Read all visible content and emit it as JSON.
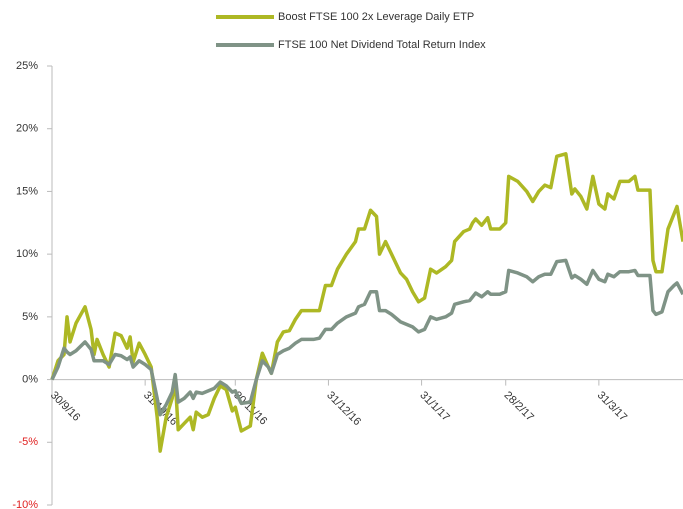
{
  "chart_data": {
    "type": "line",
    "x": [
      0,
      2,
      4,
      5,
      6,
      8,
      11,
      13,
      14,
      15,
      17,
      19,
      21,
      23,
      25,
      26,
      27,
      29,
      31,
      33,
      35,
      36,
      38,
      40,
      41,
      42,
      44,
      46,
      47,
      48,
      50,
      52,
      54,
      56,
      58,
      60,
      61,
      63,
      66,
      68,
      70,
      72,
      73,
      75,
      77,
      79,
      81,
      83,
      87,
      89,
      91,
      93,
      95,
      98,
      101,
      102,
      104,
      106,
      108,
      109,
      111,
      113,
      116,
      118,
      120,
      122,
      124,
      126,
      128,
      131,
      133,
      134,
      137,
      139,
      140,
      141,
      143,
      145,
      146,
      149,
      151,
      152,
      155,
      158,
      160,
      162,
      164,
      166,
      168,
      171,
      173,
      174,
      176,
      178,
      180,
      182,
      184,
      185,
      187,
      189,
      192,
      194,
      195,
      199,
      200,
      201,
      203,
      205,
      207,
      208,
      210
    ],
    "series": [
      {
        "name": "Boost FTSE 100 2x Leverage Daily ETP",
        "color": "#adb824",
        "values": [
          0,
          1.5,
          2,
          5,
          3,
          4.5,
          5.8,
          4,
          2,
          3.2,
          2,
          1,
          3.7,
          3.5,
          2.5,
          3.4,
          1.4,
          2.9,
          2,
          1,
          -3,
          -5.7,
          -3,
          -1.5,
          0,
          -4,
          -3.5,
          -3,
          -4,
          -2.6,
          -3,
          -2.8,
          -1.5,
          -0.5,
          -0.8,
          -2.5,
          -2.2,
          -4.1,
          -3.7,
          0,
          2.1,
          1,
          0.5,
          3,
          3.8,
          3.9,
          4.8,
          5.5,
          5.5,
          5.5,
          7.5,
          7.5,
          8.8,
          10,
          11,
          12,
          12,
          13.5,
          13,
          10,
          11,
          10,
          8.5,
          8,
          7,
          6.2,
          6.5,
          8.8,
          8.5,
          9,
          9.5,
          11,
          11.8,
          12,
          12.5,
          12.8,
          12.3,
          12.9,
          12,
          12,
          12.5,
          16.2,
          15.8,
          15,
          14.2,
          15,
          15.5,
          15.3,
          17.8,
          18,
          14.8,
          15.2,
          14.6,
          13.6,
          16.2,
          14,
          13.6,
          14.8,
          14.4,
          15.8,
          15.8,
          16.2,
          15.1,
          15.1,
          9.5,
          8.6,
          8.6,
          12,
          13.2,
          13.8,
          11
        ]
      },
      {
        "name": "FTSE 100 Net Dividend Total Return Index",
        "color": "#7f9386",
        "values": [
          0,
          1,
          2.5,
          2.2,
          2,
          2.3,
          3,
          2.4,
          1.5,
          1.5,
          1.5,
          1.2,
          2,
          1.9,
          1.6,
          1.8,
          1,
          1.5,
          1.2,
          0.8,
          -1.5,
          -2.8,
          -2,
          -1,
          0.4,
          -1.8,
          -1.5,
          -1,
          -1.5,
          -1,
          -1.1,
          -0.9,
          -0.7,
          -0.2,
          -0.5,
          -1,
          -0.9,
          -1.9,
          -1.8,
          0,
          1.5,
          1,
          0.5,
          2,
          2.3,
          2.5,
          2.9,
          3.2,
          3.2,
          3.3,
          4,
          4,
          4.5,
          5,
          5.3,
          5.8,
          6,
          7,
          7,
          5.5,
          5.5,
          5.2,
          4.6,
          4.4,
          4.2,
          3.8,
          4,
          5,
          4.8,
          5,
          5.3,
          6,
          6.2,
          6.3,
          6.6,
          6.9,
          6.6,
          7,
          6.8,
          6.8,
          7,
          8.7,
          8.5,
          8.2,
          7.8,
          8.2,
          8.4,
          8.4,
          9.4,
          9.5,
          8.1,
          8.3,
          8,
          7.6,
          8.7,
          8,
          7.8,
          8.4,
          8.2,
          8.6,
          8.6,
          8.7,
          8.3,
          8.3,
          5.5,
          5.2,
          5.4,
          7,
          7.5,
          7.7,
          6.8
        ]
      }
    ],
    "xlim": [
      0,
      210
    ],
    "xticks": [
      {
        "value": 0,
        "label": "30/9/16"
      },
      {
        "value": 31,
        "label": "31/10/16"
      },
      {
        "value": 61,
        "label": "30/11/16"
      },
      {
        "value": 92,
        "label": "31/12/16"
      },
      {
        "value": 123,
        "label": "31/1/17"
      },
      {
        "value": 151,
        "label": "28/2/17"
      },
      {
        "value": 182,
        "label": "31/3/17"
      }
    ],
    "ylim": [
      -10,
      25
    ],
    "yticks": [
      {
        "value": -10,
        "label": "-10%"
      },
      {
        "value": -5,
        "label": "-5%"
      },
      {
        "value": 0,
        "label": "0%"
      },
      {
        "value": 5,
        "label": "5%"
      },
      {
        "value": 10,
        "label": "10%"
      },
      {
        "value": 15,
        "label": "15%"
      },
      {
        "value": 20,
        "label": "20%"
      },
      {
        "value": 25,
        "label": "25%"
      }
    ],
    "grid": false
  }
}
